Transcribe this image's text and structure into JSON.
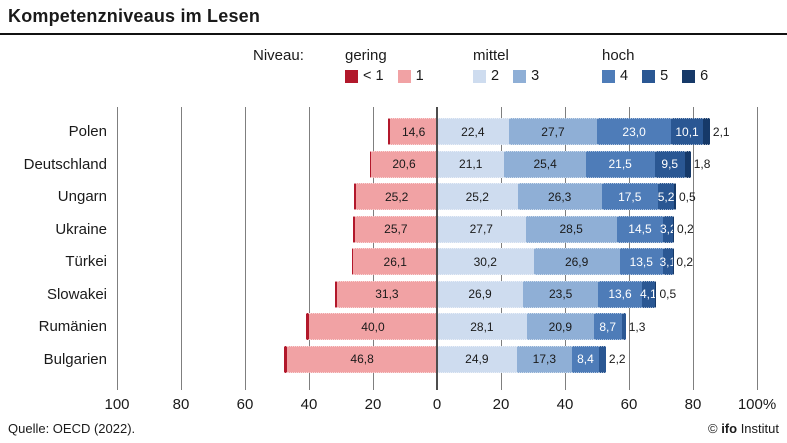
{
  "header": {
    "title": "Kompetenzniveaus im Lesen"
  },
  "footer": {
    "source": "Quelle: OECD (2022).",
    "credit_prefix": "© ",
    "credit_brand": "ifo",
    "credit_suffix": " Institut"
  },
  "chart_data": {
    "type": "bar",
    "subtype": "diverging-stacked-horizontal",
    "title": "Kompetenzniveaus im Lesen",
    "unit": "%",
    "xlabel": "",
    "ylabel": "",
    "axis": {
      "tick_labels": [
        "100",
        "80",
        "60",
        "40",
        "20",
        "0",
        "20",
        "40",
        "60",
        "80",
        "100%"
      ],
      "tick_values": [
        -100,
        -80,
        -60,
        -40,
        -20,
        0,
        20,
        40,
        60,
        80,
        100
      ],
      "range": [
        -100,
        100
      ],
      "grid": true,
      "zero_line": true
    },
    "legend": {
      "label": "Niveau:",
      "position": "top",
      "groups": [
        {
          "name": "gering",
          "items": [
            {
              "level": "lt1",
              "label": "< 1"
            },
            {
              "level": "1",
              "label": "1"
            }
          ]
        },
        {
          "name": "mittel",
          "items": [
            {
              "level": "2",
              "label": "2"
            },
            {
              "level": "3",
              "label": "3"
            }
          ]
        },
        {
          "name": "hoch",
          "items": [
            {
              "level": "4",
              "label": "4"
            },
            {
              "level": "5",
              "label": "5"
            },
            {
              "level": "6",
              "label": "6"
            }
          ]
        }
      ]
    },
    "level_colors": {
      "lt1": {
        "fill": "#b2182b",
        "text": "#ffffff"
      },
      "1": {
        "fill": "#f1a2a4",
        "text": "#1a1a1a"
      },
      "2": {
        "fill": "#cedcef",
        "text": "#1a1a1a"
      },
      "3": {
        "fill": "#8fafd6",
        "text": "#1a1a1a"
      },
      "4": {
        "fill": "#4e7cb8",
        "text": "#ffffff"
      },
      "5": {
        "fill": "#2a5793",
        "text": "#ffffff"
      },
      "6": {
        "fill": "#163968",
        "text": "#ffffff"
      }
    },
    "left_levels": [
      "lt1",
      "1"
    ],
    "note": "lt1 values are unlabeled thin slivers in the chart; estimated from pixel widths",
    "rows": [
      {
        "country": "Polen",
        "segments": [
          {
            "level": "lt1",
            "value": 0.6,
            "label": "",
            "placement": "none"
          },
          {
            "level": "1",
            "value": 14.6,
            "label": "14,6",
            "placement": "inside"
          },
          {
            "level": "2",
            "value": 22.4,
            "label": "22,4",
            "placement": "inside"
          },
          {
            "level": "3",
            "value": 27.7,
            "label": "27,7",
            "placement": "inside"
          },
          {
            "level": "4",
            "value": 23.0,
            "label": "23,0",
            "placement": "inside"
          },
          {
            "level": "5",
            "value": 10.1,
            "label": "10,1",
            "placement": "inside"
          },
          {
            "level": "6",
            "value": 2.1,
            "label": "2,1",
            "placement": "outside"
          }
        ]
      },
      {
        "country": "Deutschland",
        "segments": [
          {
            "level": "lt1",
            "value": 0.4,
            "label": "",
            "placement": "none"
          },
          {
            "level": "1",
            "value": 20.6,
            "label": "20,6",
            "placement": "inside"
          },
          {
            "level": "2",
            "value": 21.1,
            "label": "21,1",
            "placement": "inside"
          },
          {
            "level": "3",
            "value": 25.4,
            "label": "25,4",
            "placement": "inside"
          },
          {
            "level": "4",
            "value": 21.5,
            "label": "21,5",
            "placement": "inside"
          },
          {
            "level": "5",
            "value": 9.5,
            "label": "9,5",
            "placement": "inside"
          },
          {
            "level": "6",
            "value": 1.8,
            "label": "1,8",
            "placement": "outside"
          }
        ]
      },
      {
        "country": "Ungarn",
        "segments": [
          {
            "level": "lt1",
            "value": 0.6,
            "label": "",
            "placement": "none"
          },
          {
            "level": "1",
            "value": 25.2,
            "label": "25,2",
            "placement": "inside"
          },
          {
            "level": "2",
            "value": 25.2,
            "label": "25,2",
            "placement": "inside"
          },
          {
            "level": "3",
            "value": 26.3,
            "label": "26,3",
            "placement": "inside"
          },
          {
            "level": "4",
            "value": 17.5,
            "label": "17,5",
            "placement": "inside"
          },
          {
            "level": "5",
            "value": 5.2,
            "label": "5,2",
            "placement": "inside"
          },
          {
            "level": "6",
            "value": 0.5,
            "label": "0,5",
            "placement": "outside"
          }
        ]
      },
      {
        "country": "Ukraine",
        "segments": [
          {
            "level": "lt1",
            "value": 0.6,
            "label": "",
            "placement": "none"
          },
          {
            "level": "1",
            "value": 25.7,
            "label": "25,7",
            "placement": "inside"
          },
          {
            "level": "2",
            "value": 27.7,
            "label": "27,7",
            "placement": "inside"
          },
          {
            "level": "3",
            "value": 28.5,
            "label": "28,5",
            "placement": "inside"
          },
          {
            "level": "4",
            "value": 14.5,
            "label": "14,5",
            "placement": "inside"
          },
          {
            "level": "5",
            "value": 3.2,
            "label": "3,2",
            "placement": "inside"
          },
          {
            "level": "6",
            "value": 0.2,
            "label": "0,2",
            "placement": "outside"
          }
        ]
      },
      {
        "country": "Türkei",
        "segments": [
          {
            "level": "lt1",
            "value": 0.6,
            "label": "",
            "placement": "none"
          },
          {
            "level": "1",
            "value": 26.1,
            "label": "26,1",
            "placement": "inside"
          },
          {
            "level": "2",
            "value": 30.2,
            "label": "30,2",
            "placement": "inside"
          },
          {
            "level": "3",
            "value": 26.9,
            "label": "26,9",
            "placement": "inside"
          },
          {
            "level": "4",
            "value": 13.5,
            "label": "13,5",
            "placement": "inside"
          },
          {
            "level": "5",
            "value": 3.1,
            "label": "3,1",
            "placement": "inside"
          },
          {
            "level": "6",
            "value": 0.2,
            "label": "0,2",
            "placement": "outside"
          }
        ]
      },
      {
        "country": "Slowakei",
        "segments": [
          {
            "level": "lt1",
            "value": 0.7,
            "label": "",
            "placement": "none"
          },
          {
            "level": "1",
            "value": 31.3,
            "label": "31,3",
            "placement": "inside"
          },
          {
            "level": "2",
            "value": 26.9,
            "label": "26,9",
            "placement": "inside"
          },
          {
            "level": "3",
            "value": 23.5,
            "label": "23,5",
            "placement": "inside"
          },
          {
            "level": "4",
            "value": 13.6,
            "label": "13,6",
            "placement": "inside"
          },
          {
            "level": "5",
            "value": 4.1,
            "label": "4,1",
            "placement": "inside"
          },
          {
            "level": "6",
            "value": 0.5,
            "label": "0,5",
            "placement": "outside"
          }
        ]
      },
      {
        "country": "Rumänien",
        "segments": [
          {
            "level": "lt1",
            "value": 1.0,
            "label": "",
            "placement": "none"
          },
          {
            "level": "1",
            "value": 40.0,
            "label": "40,0",
            "placement": "inside"
          },
          {
            "level": "2",
            "value": 28.1,
            "label": "28,1",
            "placement": "inside"
          },
          {
            "level": "3",
            "value": 20.9,
            "label": "20,9",
            "placement": "inside"
          },
          {
            "level": "4",
            "value": 8.7,
            "label": "8,7",
            "placement": "inside"
          },
          {
            "level": "5",
            "value": 1.3,
            "label": "1,3",
            "placement": "outside"
          }
        ]
      },
      {
        "country": "Bulgarien",
        "segments": [
          {
            "level": "lt1",
            "value": 0.9,
            "label": "",
            "placement": "none"
          },
          {
            "level": "1",
            "value": 46.8,
            "label": "46,8",
            "placement": "inside"
          },
          {
            "level": "2",
            "value": 24.9,
            "label": "24,9",
            "placement": "inside"
          },
          {
            "level": "3",
            "value": 17.3,
            "label": "17,3",
            "placement": "inside"
          },
          {
            "level": "4",
            "value": 8.4,
            "label": "8,4",
            "placement": "inside"
          },
          {
            "level": "5",
            "value": 2.2,
            "label": "2,2",
            "placement": "outside"
          }
        ]
      }
    ]
  }
}
